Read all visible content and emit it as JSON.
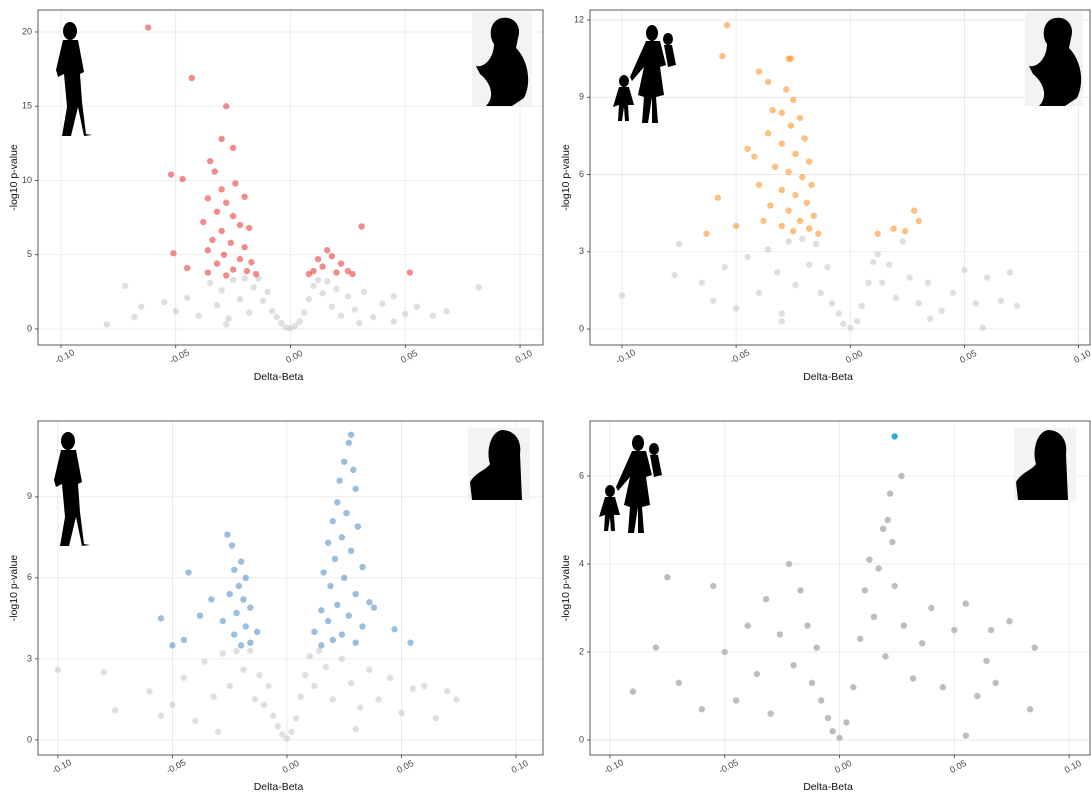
{
  "chart_data": [
    {
      "type": "scatter",
      "x_label": "Delta-Beta",
      "y_label": "-log10 p-value",
      "point_alpha": 0.5,
      "grid": true,
      "xlim": [
        -0.11,
        0.11
      ],
      "ylim": [
        -1.08,
        21.48
      ],
      "xticks": [
        {
          "value": -0.1,
          "label": "-0.10"
        },
        {
          "value": -0.05,
          "label": "-0.05"
        },
        {
          "value": 0,
          "label": "0.00"
        },
        {
          "value": 0.05,
          "label": "0.05"
        },
        {
          "value": 0.1,
          "label": "0.10"
        }
      ],
      "yticks": [
        0,
        5,
        10,
        15,
        20
      ],
      "series": [
        {
          "color": "#bfbfbf",
          "x": [
            -0.072,
            -0.065,
            -0.068,
            -0.055,
            -0.05,
            -0.045,
            -0.04,
            -0.035,
            -0.032,
            -0.03,
            -0.027,
            -0.025,
            -0.022,
            -0.02,
            -0.018,
            -0.016,
            -0.014,
            -0.012,
            -0.01,
            -0.008,
            -0.006,
            -0.004,
            -0.002,
            0,
            0.002,
            0.004,
            0.006,
            0.008,
            0.01,
            0.012,
            0.014,
            0.016,
            0.018,
            0.02,
            0.022,
            0.025,
            0.028,
            0.032,
            0.036,
            0.04,
            0.045,
            0.05,
            0.055,
            0.062,
            0.068,
            0.082,
            -0.08,
            -0.028,
            0.03,
            0.045
          ],
          "values": [
            2.9,
            1.5,
            0.8,
            1.8,
            1.2,
            2.1,
            0.9,
            3.1,
            1.6,
            2.6,
            0.7,
            3.3,
            2.0,
            3.4,
            1.1,
            2.8,
            3.4,
            1.9,
            2.5,
            1.2,
            0.8,
            0.4,
            0.1,
            0.05,
            0.2,
            0.5,
            1.1,
            2.0,
            2.9,
            3.3,
            2.4,
            3.2,
            1.5,
            2.7,
            0.9,
            2.2,
            1.3,
            2.5,
            0.8,
            1.7,
            2.2,
            1.0,
            1.5,
            0.9,
            1.2,
            2.8,
            0.3,
            0.3,
            0.4,
            0.5
          ]
        },
        {
          "color": "#e31a1c",
          "x": [
            -0.062,
            -0.043,
            -0.028,
            -0.03,
            -0.025,
            -0.035,
            -0.052,
            -0.047,
            -0.033,
            -0.024,
            -0.03,
            -0.036,
            -0.028,
            -0.02,
            -0.032,
            -0.025,
            -0.038,
            -0.022,
            -0.03,
            -0.018,
            -0.034,
            -0.026,
            -0.02,
            -0.036,
            -0.051,
            -0.029,
            -0.022,
            -0.017,
            -0.032,
            -0.045,
            -0.025,
            -0.019,
            -0.015,
            -0.036,
            -0.028,
            0.031,
            0.016,
            0.018,
            0.012,
            0.022,
            0.014,
            0.025,
            0.01,
            0.02,
            0.052,
            0.027,
            0.008
          ],
          "values": [
            20.3,
            16.9,
            15,
            12.8,
            12.2,
            11.3,
            10.4,
            10.1,
            10.6,
            9.8,
            9.4,
            8.8,
            8.5,
            8.9,
            7.9,
            7.6,
            7.2,
            7.0,
            6.6,
            6.8,
            6.0,
            5.8,
            5.5,
            5.3,
            5.1,
            5.0,
            4.7,
            4.5,
            4.4,
            4.1,
            4.0,
            3.9,
            3.7,
            3.8,
            3.6,
            6.9,
            5.3,
            4.9,
            4.7,
            4.4,
            4.2,
            3.9,
            3.9,
            3.8,
            3.8,
            3.7,
            3.7
          ]
        }
      ]
    },
    {
      "type": "scatter",
      "x_label": "Delta-Beta",
      "y_label": "-log10 p-value",
      "point_alpha": 0.5,
      "grid": true,
      "xlim": [
        -0.114,
        0.105
      ],
      "ylim": [
        -0.62,
        12.39
      ],
      "xticks": [
        {
          "value": -0.1,
          "label": "-0.10"
        },
        {
          "value": -0.05,
          "label": "-0.05"
        },
        {
          "value": 0,
          "label": "0.00"
        },
        {
          "value": 0.05,
          "label": "0.05"
        },
        {
          "value": 0.1,
          "label": "0.10"
        }
      ],
      "yticks": [
        0,
        3,
        6,
        9,
        12
      ],
      "series": [
        {
          "color": "#bfbfbf",
          "x": [
            -0.075,
            -0.077,
            -0.1,
            -0.065,
            -0.06,
            -0.055,
            -0.05,
            -0.045,
            -0.04,
            -0.036,
            -0.032,
            -0.03,
            -0.027,
            -0.024,
            -0.021,
            -0.018,
            -0.015,
            -0.013,
            -0.01,
            -0.008,
            -0.005,
            -0.003,
            0,
            0.003,
            0.005,
            0.008,
            0.01,
            0.012,
            0.014,
            0.017,
            0.02,
            0.023,
            0.026,
            0.03,
            0.034,
            0.04,
            0.045,
            0.05,
            0.055,
            0.06,
            0.066,
            0.07,
            0.073,
            0.058,
            -0.03,
            0.035
          ],
          "values": [
            3.3,
            2.1,
            1.3,
            1.8,
            1.1,
            2.4,
            0.8,
            2.8,
            1.4,
            3.1,
            2.2,
            0.6,
            3.4,
            1.7,
            3.5,
            2.5,
            3.3,
            1.4,
            2.4,
            1.0,
            0.6,
            0.2,
            0.05,
            0.3,
            0.9,
            1.8,
            2.6,
            2.9,
            1.8,
            2.5,
            1.2,
            3.4,
            2.0,
            1.0,
            1.8,
            0.7,
            1.4,
            2.3,
            1.0,
            2.0,
            1.1,
            2.2,
            0.9,
            0.05,
            0.3,
            0.4
          ]
        },
        {
          "color": "#ff7f00",
          "x": [
            -0.054,
            -0.056,
            -0.026,
            -0.027,
            -0.04,
            -0.036,
            -0.028,
            -0.025,
            -0.034,
            -0.03,
            -0.022,
            -0.026,
            -0.036,
            -0.02,
            -0.03,
            -0.045,
            -0.042,
            -0.024,
            -0.018,
            -0.033,
            -0.027,
            -0.021,
            -0.04,
            -0.017,
            -0.03,
            -0.024,
            -0.058,
            -0.035,
            -0.019,
            -0.027,
            -0.016,
            -0.038,
            -0.022,
            -0.05,
            -0.03,
            -0.018,
            -0.063,
            -0.025,
            -0.014,
            0.028,
            0.03,
            0.019,
            0.012,
            0.024
          ],
          "values": [
            11.8,
            10.6,
            10.5,
            10.5,
            10.0,
            9.6,
            9.3,
            8.9,
            8.5,
            8.4,
            8.2,
            7.9,
            7.6,
            7.4,
            7.2,
            7.0,
            6.7,
            6.8,
            6.5,
            6.3,
            6.1,
            5.9,
            5.6,
            5.6,
            5.4,
            5.2,
            5.1,
            4.8,
            4.9,
            4.6,
            4.4,
            4.2,
            4.2,
            4.0,
            4.0,
            3.9,
            3.7,
            3.8,
            3.7,
            4.6,
            4.2,
            3.9,
            3.7,
            3.8
          ]
        }
      ]
    },
    {
      "type": "scatter",
      "x_label": "Delta-Beta",
      "y_label": "-log10 p-value",
      "point_alpha": 0.5,
      "grid": true,
      "xlim": [
        -0.1087,
        0.1118
      ],
      "ylim": [
        -0.56,
        11.81
      ],
      "xticks": [
        {
          "value": -0.1,
          "label": "-0.10"
        },
        {
          "value": -0.05,
          "label": "-0.05"
        },
        {
          "value": 0,
          "label": "0.00"
        },
        {
          "value": 0.05,
          "label": "0.05"
        },
        {
          "value": 0.1,
          "label": "0.10"
        }
      ],
      "yticks": [
        0,
        3,
        6,
        9
      ],
      "series": [
        {
          "color": "#bfbfbf",
          "x": [
            -0.1,
            -0.08,
            -0.075,
            -0.06,
            -0.055,
            -0.05,
            -0.045,
            -0.04,
            -0.036,
            -0.032,
            -0.028,
            -0.025,
            -0.022,
            -0.019,
            -0.016,
            -0.014,
            -0.012,
            -0.01,
            -0.008,
            -0.006,
            -0.004,
            -0.002,
            0,
            0.002,
            0.004,
            0.006,
            0.008,
            0.01,
            0.012,
            0.014,
            0.017,
            0.02,
            0.024,
            0.028,
            0.032,
            0.036,
            0.04,
            0.045,
            0.05,
            0.055,
            0.06,
            0.065,
            0.07,
            0.074,
            -0.03,
            0.03
          ],
          "values": [
            2.6,
            2.5,
            1.1,
            1.8,
            0.9,
            1.3,
            2.3,
            0.7,
            2.9,
            1.6,
            3.2,
            2.0,
            3.3,
            2.6,
            3.3,
            1.5,
            2.4,
            1.3,
            2.0,
            0.9,
            0.5,
            0.2,
            0.05,
            0.3,
            0.8,
            1.6,
            2.4,
            3.1,
            2.0,
            3.3,
            2.7,
            1.5,
            3.0,
            2.1,
            1.2,
            2.6,
            1.5,
            2.3,
            1.0,
            1.9,
            2.0,
            0.8,
            1.8,
            1.5,
            0.3,
            0.4
          ]
        },
        {
          "color": "#3a7dbd",
          "x": [
            0.028,
            0.027,
            0.025,
            0.029,
            0.023,
            0.03,
            0.022,
            0.026,
            0.02,
            0.031,
            0.024,
            0.018,
            0.028,
            0.021,
            0.033,
            0.016,
            0.025,
            0.019,
            0.03,
            0.036,
            0.022,
            0.015,
            0.038,
            0.027,
            0.018,
            0.033,
            0.047,
            0.012,
            0.024,
            0.02,
            0.015,
            0.054,
            0.03,
            -0.026,
            -0.024,
            -0.02,
            -0.023,
            -0.018,
            -0.043,
            -0.021,
            -0.025,
            -0.019,
            -0.033,
            -0.016,
            -0.022,
            -0.038,
            -0.055,
            -0.028,
            -0.018,
            -0.013,
            -0.023,
            -0.045,
            -0.016,
            -0.05,
            -0.02
          ],
          "values": [
            11.3,
            11.0,
            10.3,
            10.0,
            9.6,
            9.3,
            8.8,
            8.4,
            8.1,
            7.9,
            7.5,
            7.3,
            7.0,
            6.7,
            6.4,
            6.2,
            6.0,
            5.7,
            5.4,
            5.1,
            5.0,
            4.8,
            4.9,
            4.6,
            4.4,
            4.2,
            4.1,
            4.0,
            3.9,
            3.7,
            3.5,
            3.6,
            3.6,
            7.6,
            7.2,
            6.6,
            6.3,
            6.0,
            6.2,
            5.7,
            5.4,
            5.2,
            5.2,
            4.9,
            4.7,
            4.6,
            4.5,
            4.4,
            4.2,
            4.0,
            3.9,
            3.7,
            3.6,
            3.5,
            3.5
          ]
        }
      ]
    },
    {
      "type": "scatter",
      "x_label": "Delta-Beta",
      "y_label": "-log10 p-value",
      "point_alpha": 1,
      "grid": true,
      "xlim": [
        -0.1087,
        0.1091
      ],
      "ylim": [
        -0.34,
        7.25
      ],
      "xticks": [
        {
          "value": -0.1,
          "label": "-0.10"
        },
        {
          "value": -0.05,
          "label": "-0.05"
        },
        {
          "value": 0,
          "label": "0.00"
        },
        {
          "value": 0.05,
          "label": "0.05"
        },
        {
          "value": 0.1,
          "label": "0.10"
        }
      ],
      "yticks": [
        0,
        2,
        4,
        6
      ],
      "series": [
        {
          "color": "#bdbdbd",
          "x": [
            0.022,
            0.027,
            0.021,
            0.019,
            0.023,
            -0.075,
            -0.07,
            -0.08,
            -0.09,
            0.074,
            0.085,
            0.083,
            0.066,
            -0.055,
            -0.05,
            -0.045,
            -0.04,
            -0.036,
            -0.032,
            -0.03,
            -0.026,
            -0.022,
            -0.02,
            -0.017,
            -0.014,
            -0.012,
            -0.01,
            -0.008,
            -0.005,
            -0.003,
            0,
            0.003,
            0.006,
            0.009,
            0.011,
            0.013,
            0.015,
            0.017,
            0.02,
            0.024,
            0.028,
            0.032,
            0.036,
            0.04,
            0.045,
            0.05,
            0.055,
            0.06,
            0.064,
            0.068,
            0.055,
            -0.06
          ],
          "values": [
            5.6,
            6.0,
            5.0,
            4.8,
            4.5,
            3.7,
            1.3,
            2.1,
            1.1,
            2.7,
            2.1,
            0.7,
            2.5,
            3.5,
            2.0,
            0.9,
            2.6,
            1.5,
            3.2,
            0.6,
            2.4,
            4.0,
            1.7,
            3.4,
            2.6,
            1.3,
            2.1,
            0.9,
            0.5,
            0.2,
            0.05,
            0.4,
            1.2,
            2.3,
            3.4,
            4.1,
            2.8,
            3.9,
            1.9,
            3.5,
            2.6,
            1.4,
            2.2,
            3.0,
            1.2,
            2.5,
            3.1,
            1.0,
            1.8,
            1.3,
            0.1,
            0.7
          ]
        },
        {
          "color": "#29a9dc",
          "x": [
            0.024
          ],
          "values": [
            6.9
          ]
        }
      ]
    }
  ]
}
